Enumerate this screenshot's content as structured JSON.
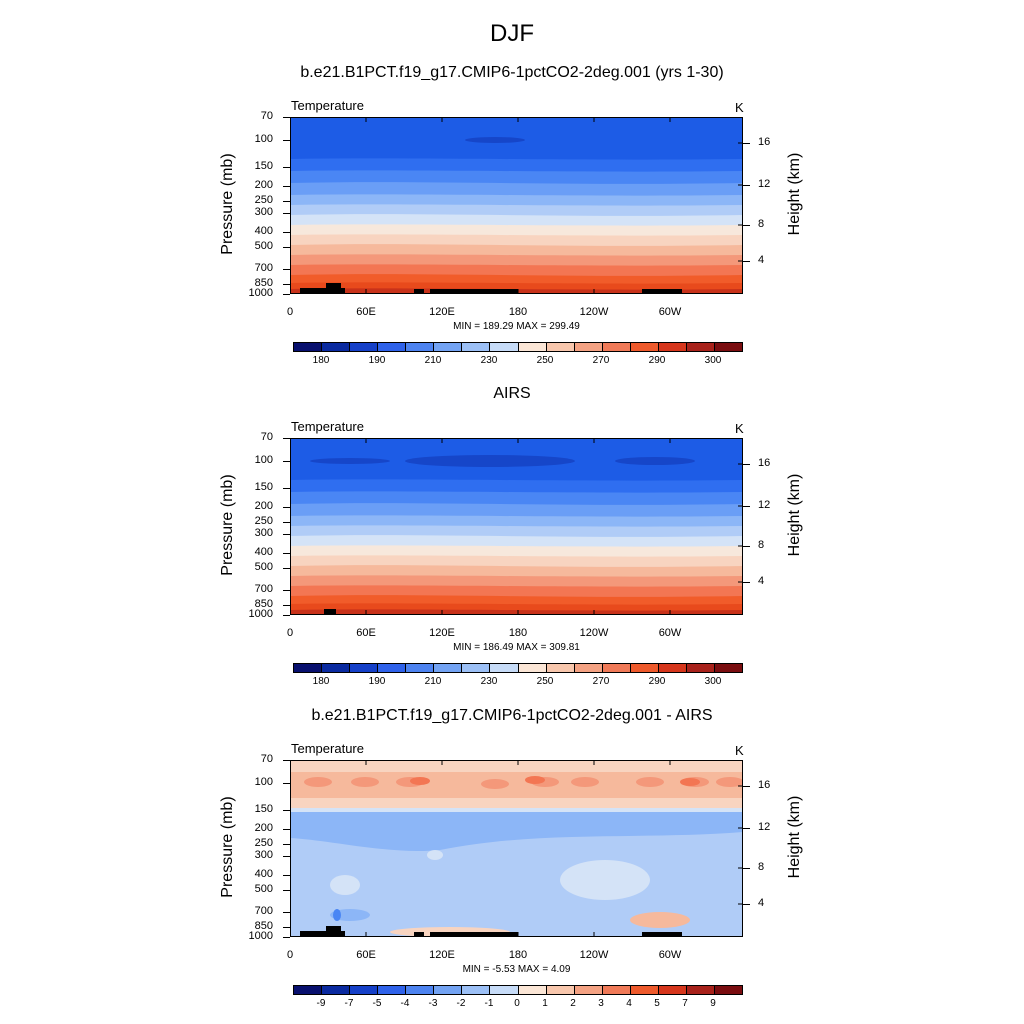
{
  "figure": {
    "title": "DJF"
  },
  "chart_data": [
    {
      "type": "heatmap",
      "title": "b.e21.B1PCT.f19_g17.CMIP6-1pctCO2-2deg.001 (yrs 1-30)",
      "variable": "Temperature",
      "units": "K",
      "ylabel": "Pressure (mb)",
      "ylabel_right": "Height (km)",
      "minmax": "MIN = 189.29  MAX = 299.49",
      "field_range": [
        189.29,
        299.49
      ],
      "x_ticks": [
        "0",
        "60E",
        "120E",
        "180",
        "120W",
        "60W"
      ],
      "y_ticks": [
        "70",
        "100",
        "150",
        "200",
        "250",
        "300",
        "400",
        "500",
        "700",
        "850",
        "1000"
      ],
      "right_ticks": [
        "16",
        "12",
        "8",
        "4"
      ],
      "colorbar_labels": [
        "180",
        "190",
        "210",
        "230",
        "250",
        "270",
        "290",
        "300"
      ]
    },
    {
      "type": "heatmap",
      "title": "AIRS",
      "variable": "Temperature",
      "units": "K",
      "ylabel": "Pressure (mb)",
      "ylabel_right": "Height (km)",
      "minmax": "MIN = 186.49  MAX = 309.81",
      "field_range": [
        186.49,
        309.81
      ],
      "x_ticks": [
        "0",
        "60E",
        "120E",
        "180",
        "120W",
        "60W"
      ],
      "y_ticks": [
        "70",
        "100",
        "150",
        "200",
        "250",
        "300",
        "400",
        "500",
        "700",
        "850",
        "1000"
      ],
      "right_ticks": [
        "16",
        "12",
        "8",
        "4"
      ],
      "colorbar_labels": [
        "180",
        "190",
        "210",
        "230",
        "250",
        "270",
        "290",
        "300"
      ]
    },
    {
      "type": "heatmap",
      "title": "b.e21.B1PCT.f19_g17.CMIP6-1pctCO2-2deg.001 - AIRS",
      "variable": "Temperature",
      "units": "K",
      "ylabel": "Pressure (mb)",
      "ylabel_right": "Height (km)",
      "minmax": "MIN =  -5.53  MAX =   4.09",
      "field_range": [
        -5.53,
        4.09
      ],
      "x_ticks": [
        "0",
        "60E",
        "120E",
        "180",
        "120W",
        "60W"
      ],
      "y_ticks": [
        "70",
        "100",
        "150",
        "200",
        "250",
        "300",
        "400",
        "500",
        "700",
        "850",
        "1000"
      ],
      "right_ticks": [
        "16",
        "12",
        "8",
        "4"
      ],
      "colorbar_labels": [
        "-9",
        "-7",
        "-5",
        "-4",
        "-3",
        "-2",
        "-1",
        "0",
        "1",
        "2",
        "3",
        "4",
        "5",
        "7",
        "9"
      ]
    }
  ],
  "colors": {
    "abs_bands": [
      "#1d5ce6",
      "#2f6ef0",
      "#4a86f4",
      "#6a9ef6",
      "#8cb6f7",
      "#b0ccf7",
      "#d4e3f7",
      "#f7e8dc",
      "#f8d4c0",
      "#f6b99c",
      "#f4987a",
      "#f37653",
      "#f15c2a",
      "#e84a1c",
      "#c8321a"
    ],
    "diff_bands": [
      "#2f6ef0",
      "#6a9ef6",
      "#8cb6f7",
      "#b0ccf7",
      "#d4e3f7",
      "#f7e8dc",
      "#f8d4c0",
      "#f6b99c",
      "#f4987a",
      "#f37653"
    ],
    "colorbar": [
      "#08106e",
      "#0a2aa0",
      "#1540c8",
      "#2f62ea",
      "#4d83f0",
      "#73a3f3",
      "#9cc0f6",
      "#c7dcf8",
      "#fbe6d6",
      "#f8c7ad",
      "#f4a283",
      "#f07a58",
      "#ee5a2c",
      "#d6361c",
      "#a8221b",
      "#7a0d10"
    ]
  }
}
